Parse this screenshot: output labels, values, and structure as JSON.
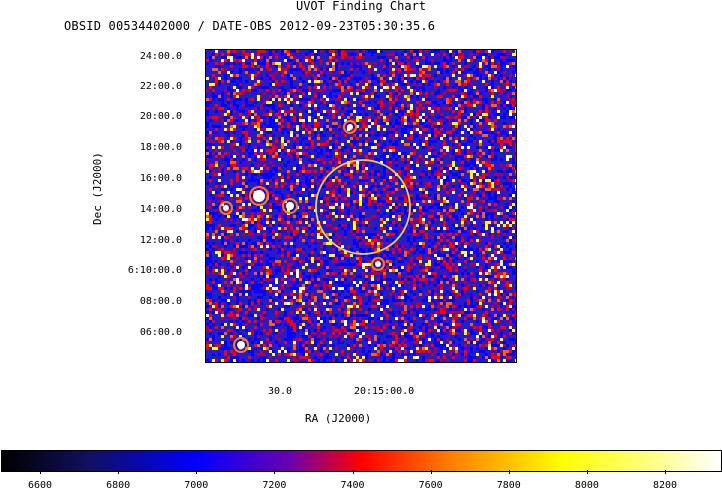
{
  "title": "UVOT Finding Chart",
  "subtitle": "OBSID 00534402000 / DATE-OBS 2012-09-23T05:30:35.6",
  "y_axis": {
    "label": "Dec (J2000)",
    "ticks": [
      "24:00.0",
      "22:00.0",
      "20:00.0",
      "18:00.0",
      "16:00.0",
      "14:00.0",
      "12:00.0",
      "6:10:00.0",
      "08:00.0",
      "06:00.0"
    ]
  },
  "x_axis": {
    "label": "RA (J2000)",
    "ticks": [
      "30.0",
      "20:15:00.0"
    ]
  },
  "colorbar": {
    "ticks": [
      "6600",
      "6800",
      "7000",
      "7200",
      "7400",
      "7600",
      "7800",
      "8000",
      "8200"
    ],
    "colors": [
      "#000000",
      "#0000ff",
      "#ff0000",
      "#ffff00",
      "#ffffff"
    ]
  },
  "region_circle_color": "#e8d640",
  "image_colors": [
    "#1a1aa8",
    "#0000ff",
    "#ff0000",
    "#ffff00",
    "#ffffff"
  ]
}
